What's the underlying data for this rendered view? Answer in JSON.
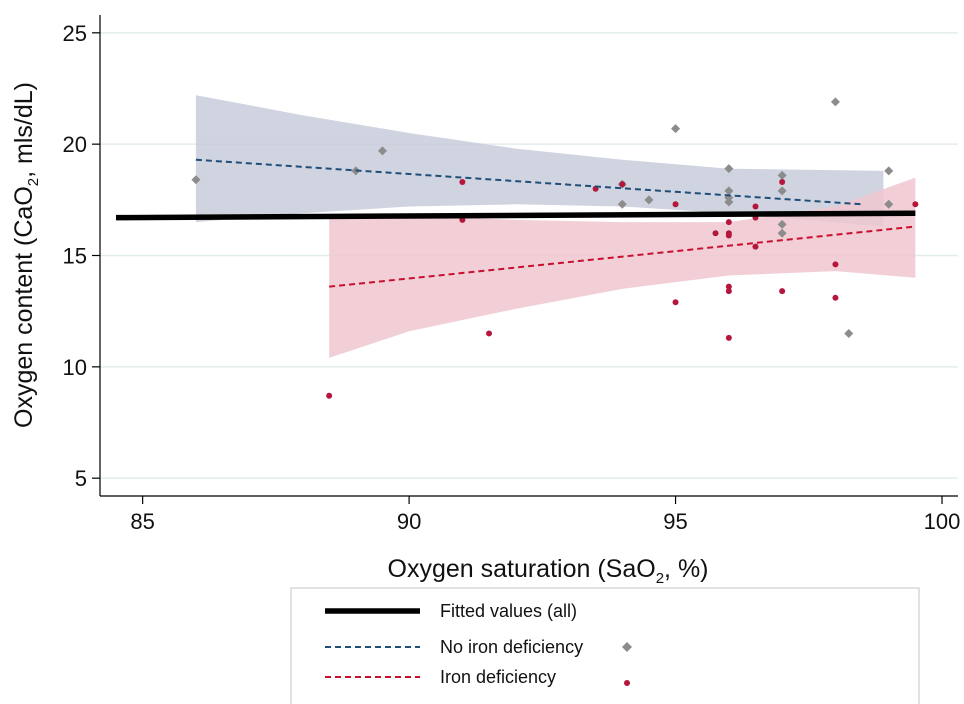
{
  "chart_data": {
    "type": "scatter",
    "xlabel": {
      "pre": "Oxygen saturation (SaO",
      "sub": "2",
      "post": ", %)"
    },
    "ylabel": {
      "pre": "Oxygen content (CaO",
      "sub": "2",
      "post": ", mls/dL)"
    },
    "xlim": [
      84.2,
      100.3
    ],
    "ylim": [
      4.2,
      25.8
    ],
    "xticks": [
      85,
      90,
      95,
      100
    ],
    "yticks": [
      5,
      10,
      15,
      20,
      25
    ],
    "grid": "horizontal",
    "legend_position": "bottom",
    "series": [
      {
        "name": "No iron deficiency",
        "marker": "diamond",
        "color": "#8c8c8c",
        "points": [
          [
            86,
            18.4
          ],
          [
            89,
            18.8
          ],
          [
            89.5,
            19.7
          ],
          [
            94,
            17.3
          ],
          [
            94,
            18.2
          ],
          [
            94.5,
            17.5
          ],
          [
            95,
            20.7
          ],
          [
            96,
            18.9
          ],
          [
            96,
            17.9
          ],
          [
            96,
            17.6
          ],
          [
            96,
            17.4
          ],
          [
            97,
            18.6
          ],
          [
            97,
            17.9
          ],
          [
            97,
            16.4
          ],
          [
            97,
            16.0
          ],
          [
            98,
            21.9
          ],
          [
            98.25,
            11.5
          ],
          [
            99,
            18.8
          ],
          [
            99,
            17.3
          ]
        ]
      },
      {
        "name": "Iron deficiency",
        "marker": "dot",
        "color": "#b5163c",
        "points": [
          [
            88.5,
            8.7
          ],
          [
            91,
            18.3
          ],
          [
            91,
            16.6
          ],
          [
            91.5,
            11.5
          ],
          [
            93.5,
            18.0
          ],
          [
            94,
            18.2
          ],
          [
            95,
            17.3
          ],
          [
            95,
            12.9
          ],
          [
            95.75,
            16.0
          ],
          [
            96,
            16.5
          ],
          [
            96,
            16.0
          ],
          [
            96,
            15.9
          ],
          [
            96,
            13.6
          ],
          [
            96,
            13.4
          ],
          [
            96,
            11.3
          ],
          [
            96.5,
            17.2
          ],
          [
            96.5,
            16.7
          ],
          [
            96.5,
            15.4
          ],
          [
            97,
            18.3
          ],
          [
            97,
            13.4
          ],
          [
            98,
            14.6
          ],
          [
            98,
            13.1
          ],
          [
            99.5,
            17.3
          ]
        ]
      }
    ],
    "fitted_lines": [
      {
        "name": "Fitted values (all)",
        "style": "solid",
        "color": "#000000",
        "x": [
          84.5,
          99.5
        ],
        "y": [
          16.7,
          16.9
        ]
      },
      {
        "name": "No iron deficiency",
        "style": "dashed",
        "color": "#1f4e79",
        "x": [
          86,
          98.5
        ],
        "y": [
          19.3,
          17.3
        ]
      },
      {
        "name": "Iron deficiency",
        "style": "dashed",
        "color": "#c8102e",
        "x": [
          88.5,
          99.5
        ],
        "y": [
          13.6,
          16.3
        ]
      }
    ],
    "confidence_bands": [
      {
        "name": "No iron deficiency",
        "color": "#c8cbdb",
        "x": [
          86,
          88,
          90,
          92,
          94,
          96,
          98.9
        ],
        "upper": [
          22.2,
          21.3,
          20.5,
          19.8,
          19.3,
          18.9,
          18.8
        ],
        "lower": [
          16.5,
          16.9,
          17.2,
          17.3,
          17.2,
          16.9,
          16.3
        ]
      },
      {
        "name": "Iron deficiency",
        "color": "#f0c7d0",
        "x": [
          88.5,
          90,
          92,
          94,
          96,
          98,
          99.5
        ],
        "upper": [
          16.8,
          16.8,
          16.6,
          16.5,
          16.5,
          17.2,
          18.5
        ],
        "lower": [
          10.4,
          11.6,
          12.6,
          13.5,
          14.1,
          14.3,
          14.0
        ]
      }
    ],
    "legend": {
      "entries": [
        {
          "label": "Fitted values (all)"
        },
        {
          "label": "No iron deficiency"
        },
        {
          "label": "Iron deficiency"
        }
      ]
    }
  }
}
